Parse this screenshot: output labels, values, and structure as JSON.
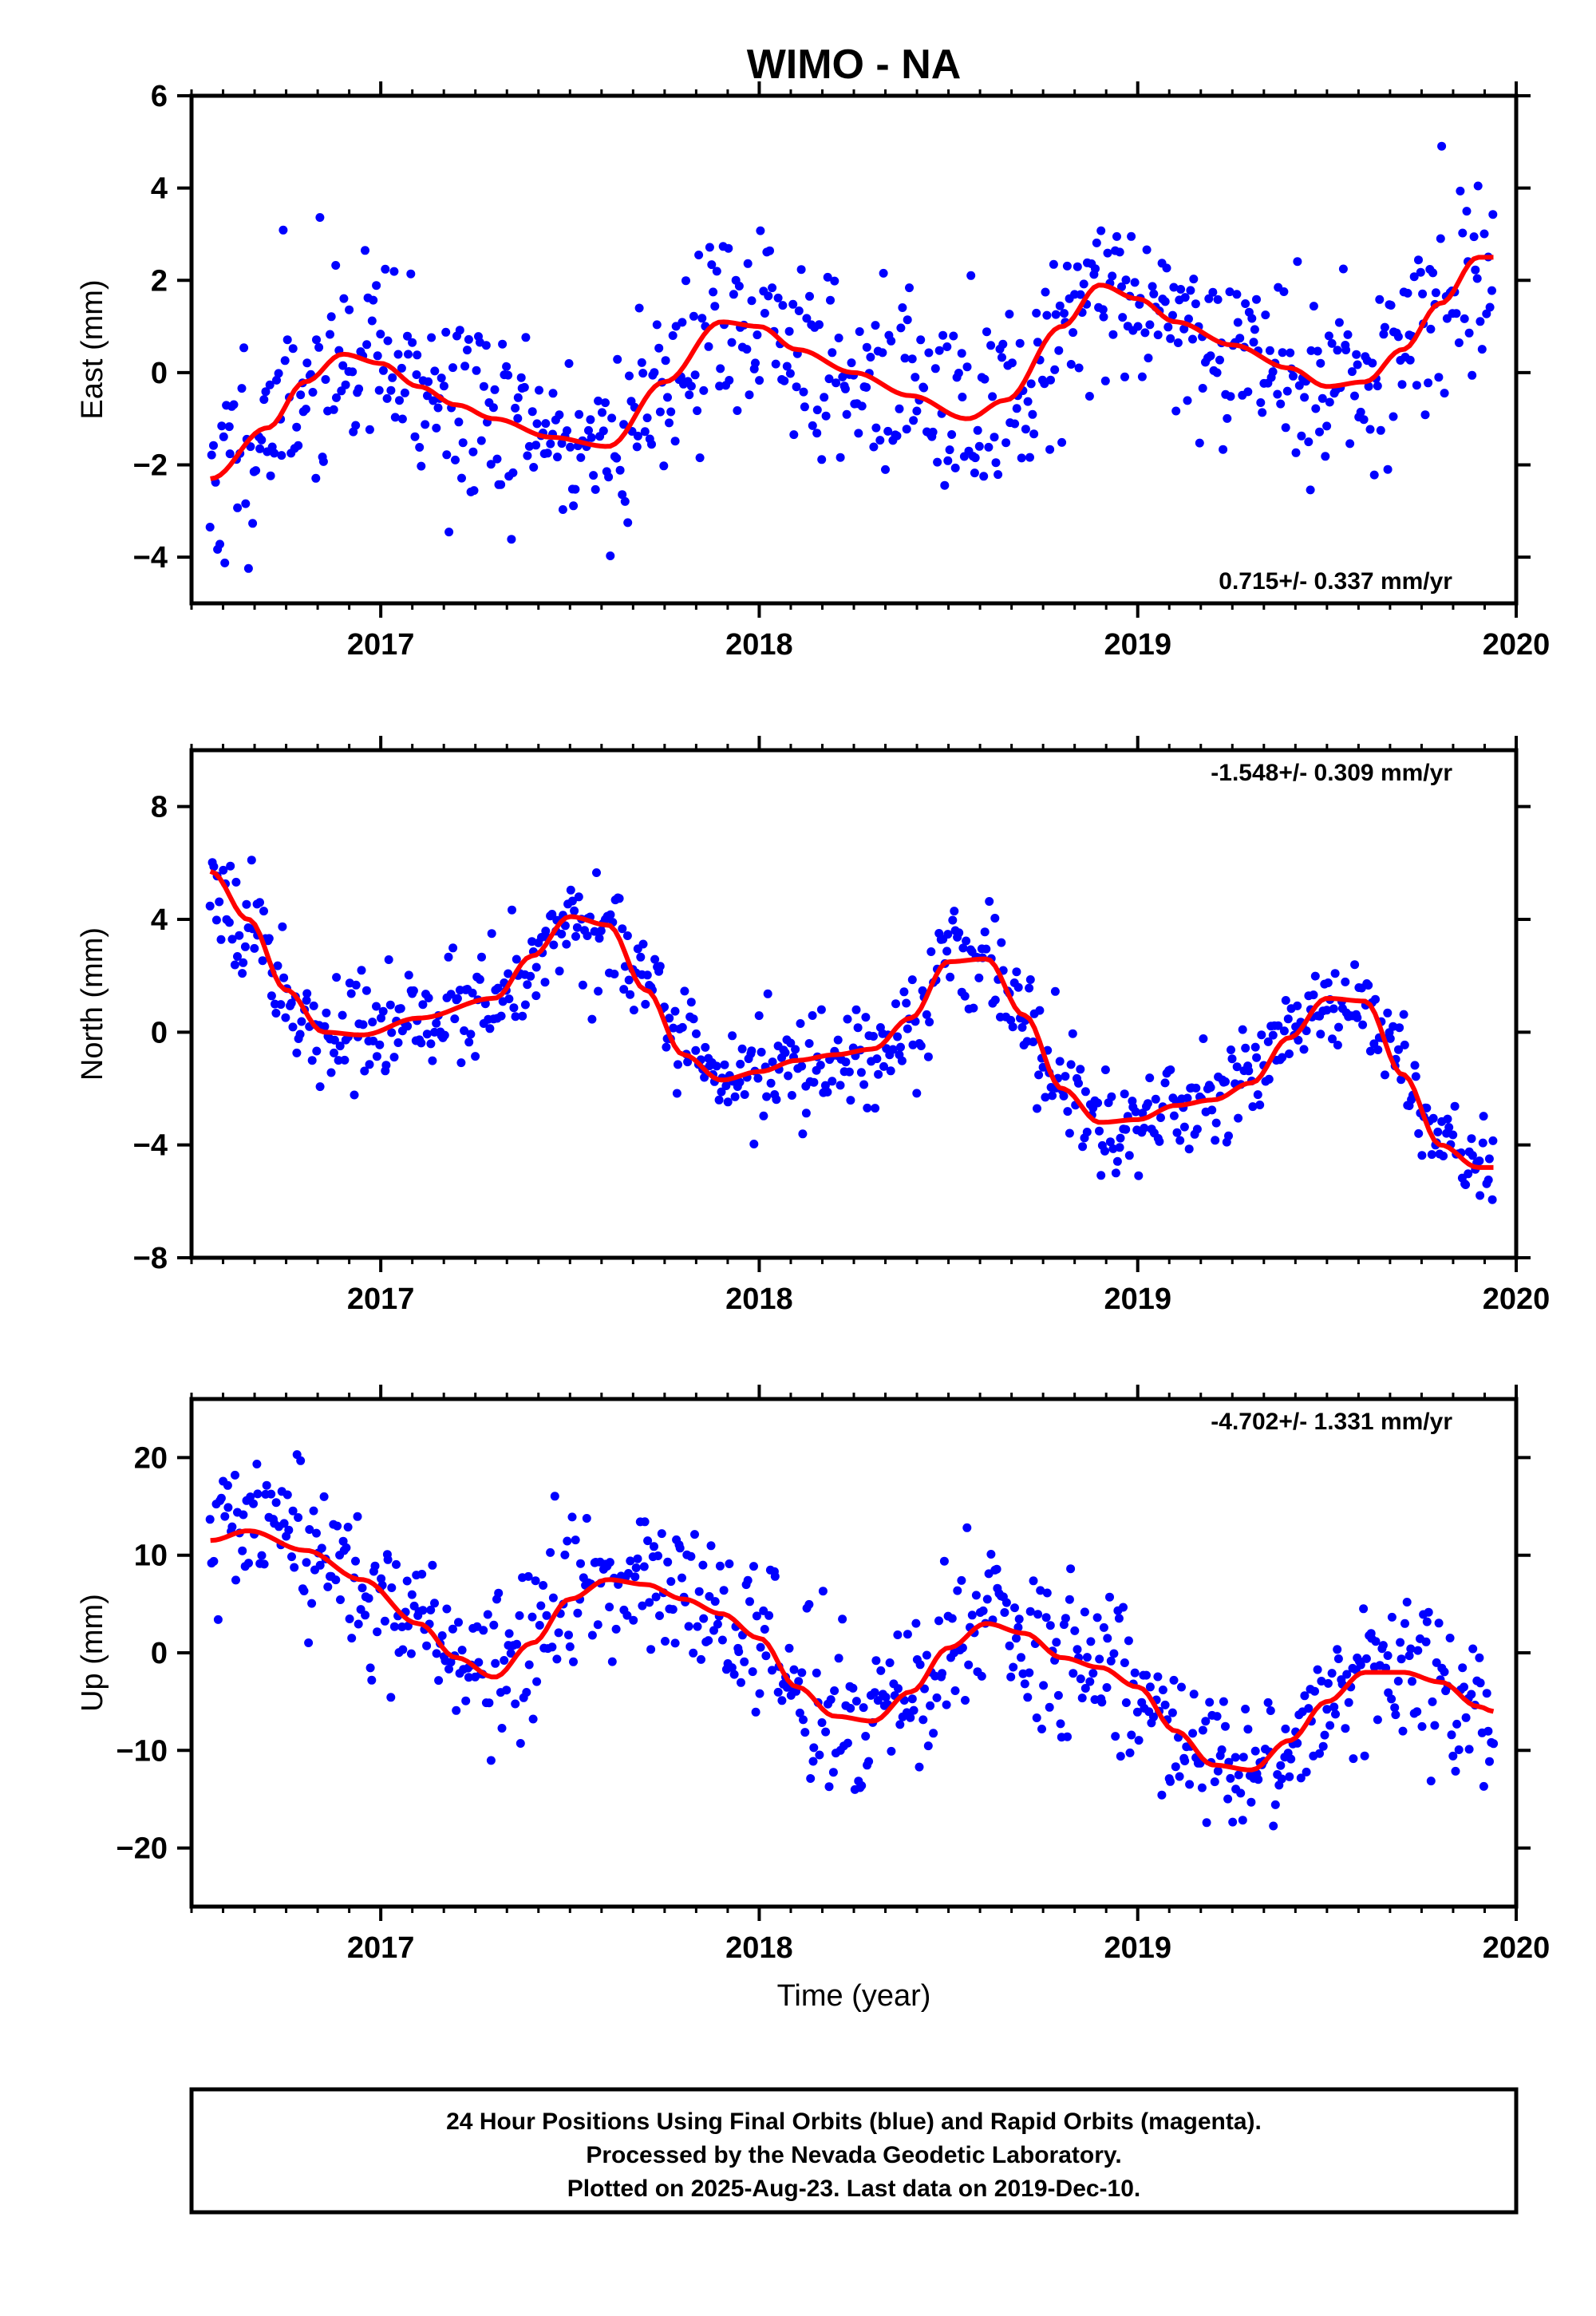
{
  "title": "WIMO - NA",
  "footer": {
    "lines": [
      "24 Hour Positions Using Final Orbits (blue) and Rapid Orbits (magenta).",
      "Processed by the Nevada Geodetic Laboratory.",
      "Plotted on 2025-Aug-23. Last data on 2019-Dec-10."
    ]
  },
  "colors": {
    "points": "#0000ff",
    "fit": "#ff0000",
    "frame": "#000000"
  },
  "chart_data": [
    {
      "type": "scatter",
      "ylabel": "East (mm)",
      "xlabel": "",
      "xlim": [
        2016.5,
        2020.0
      ],
      "ylim": [
        -5,
        6
      ],
      "xticks": [
        2017,
        2018,
        2019,
        2020
      ],
      "xtick_labels": [
        "2017",
        "2018",
        "2019",
        "2020"
      ],
      "yticks": [
        -4,
        -2,
        0,
        2,
        4,
        6
      ],
      "ytick_labels": [
        "−4",
        "−2",
        "0",
        "2",
        "4",
        "6"
      ],
      "rate_label": "0.715+/- 0.337 mm/yr",
      "rate_position": "bottom-right",
      "scatter": {
        "name": "",
        "x_start": 2016.55,
        "x_end": 2019.94,
        "n": 700,
        "noise": 1.1,
        "seed": 11
      },
      "fit": {
        "x": [
          2016.55,
          2016.7,
          2016.8,
          2016.9,
          2017.0,
          2017.1,
          2017.2,
          2017.3,
          2017.45,
          2017.6,
          2017.75,
          2017.9,
          2018.0,
          2018.1,
          2018.25,
          2018.4,
          2018.55,
          2018.65,
          2018.8,
          2018.9,
          2019.0,
          2019.1,
          2019.25,
          2019.4,
          2019.5,
          2019.6,
          2019.7,
          2019.8,
          2019.9,
          2019.94
        ],
        "y": [
          -2.3,
          -1.2,
          -0.2,
          0.4,
          0.2,
          -0.3,
          -0.7,
          -1.0,
          -1.4,
          -1.6,
          -0.2,
          1.1,
          1.0,
          0.5,
          0.0,
          -0.5,
          -1.0,
          -0.6,
          1.0,
          1.9,
          1.6,
          1.1,
          0.6,
          0.1,
          -0.3,
          -0.2,
          0.5,
          1.5,
          2.5,
          2.5
        ]
      }
    },
    {
      "type": "scatter",
      "ylabel": "North (mm)",
      "xlabel": "",
      "xlim": [
        2016.5,
        2020.0
      ],
      "ylim": [
        -8,
        10
      ],
      "xticks": [
        2017,
        2018,
        2019,
        2020
      ],
      "xtick_labels": [
        "2017",
        "2018",
        "2019",
        "2020"
      ],
      "yticks": [
        -8,
        -4,
        0,
        4,
        8
      ],
      "ytick_labels": [
        "−8",
        "−4",
        "0",
        "4",
        "8"
      ],
      "rate_label": "-1.548+/- 0.309 mm/yr",
      "rate_position": "top-right",
      "scatter": {
        "name": "",
        "x_start": 2016.55,
        "x_end": 2019.94,
        "n": 700,
        "noise": 0.95,
        "seed": 23
      },
      "fit": {
        "x": [
          2016.55,
          2016.65,
          2016.75,
          2016.85,
          2016.95,
          2017.1,
          2017.3,
          2017.4,
          2017.5,
          2017.6,
          2017.7,
          2017.8,
          2017.9,
          2018.0,
          2018.1,
          2018.2,
          2018.3,
          2018.4,
          2018.5,
          2018.6,
          2018.7,
          2018.8,
          2018.9,
          2019.0,
          2019.1,
          2019.2,
          2019.3,
          2019.4,
          2019.5,
          2019.6,
          2019.7,
          2019.8,
          2019.9,
          2019.94
        ],
        "y": [
          5.7,
          4.0,
          1.5,
          0.0,
          -0.1,
          0.5,
          1.2,
          2.7,
          4.1,
          3.8,
          1.5,
          -0.8,
          -1.7,
          -1.4,
          -1.0,
          -0.8,
          -0.6,
          0.5,
          2.5,
          2.6,
          0.6,
          -2.0,
          -3.2,
          -3.1,
          -2.6,
          -2.4,
          -1.8,
          -0.2,
          1.2,
          1.1,
          -1.5,
          -4.0,
          -4.8,
          -4.8
        ]
      }
    },
    {
      "type": "scatter",
      "ylabel": "Up (mm)",
      "xlabel": "Time (year)",
      "xlim": [
        2016.5,
        2020.0
      ],
      "ylim": [
        -26,
        26
      ],
      "xticks": [
        2017,
        2018,
        2019,
        2020
      ],
      "xtick_labels": [
        "2017",
        "2018",
        "2019",
        "2020"
      ],
      "yticks": [
        -20,
        -10,
        0,
        10,
        20
      ],
      "ytick_labels": [
        "−20",
        "−10",
        "0",
        "10",
        "20"
      ],
      "rate_label": "-4.702+/- 1.331 mm/yr",
      "rate_position": "top-right",
      "scatter": {
        "name": "",
        "x_start": 2016.55,
        "x_end": 2019.94,
        "n": 700,
        "noise": 4.0,
        "seed": 37
      },
      "fit": {
        "x": [
          2016.55,
          2016.65,
          2016.8,
          2016.95,
          2017.1,
          2017.2,
          2017.3,
          2017.4,
          2017.5,
          2017.6,
          2017.7,
          2017.8,
          2017.9,
          2018.0,
          2018.1,
          2018.2,
          2018.3,
          2018.4,
          2018.5,
          2018.6,
          2018.7,
          2018.8,
          2018.9,
          2019.0,
          2019.1,
          2019.2,
          2019.3,
          2019.4,
          2019.5,
          2019.6,
          2019.7,
          2019.8,
          2019.9,
          2019.94
        ],
        "y": [
          11.5,
          12.5,
          10.5,
          7.5,
          3.0,
          -0.5,
          -2.5,
          1.0,
          5.5,
          7.5,
          7.0,
          5.5,
          4.0,
          1.5,
          -3.5,
          -6.5,
          -7.0,
          -4.0,
          0.5,
          3.0,
          2.0,
          -0.5,
          -1.5,
          -3.5,
          -8.0,
          -11.5,
          -12.0,
          -9.0,
          -5.0,
          -2.0,
          -2.0,
          -3.0,
          -5.5,
          -6.0
        ]
      }
    }
  ]
}
